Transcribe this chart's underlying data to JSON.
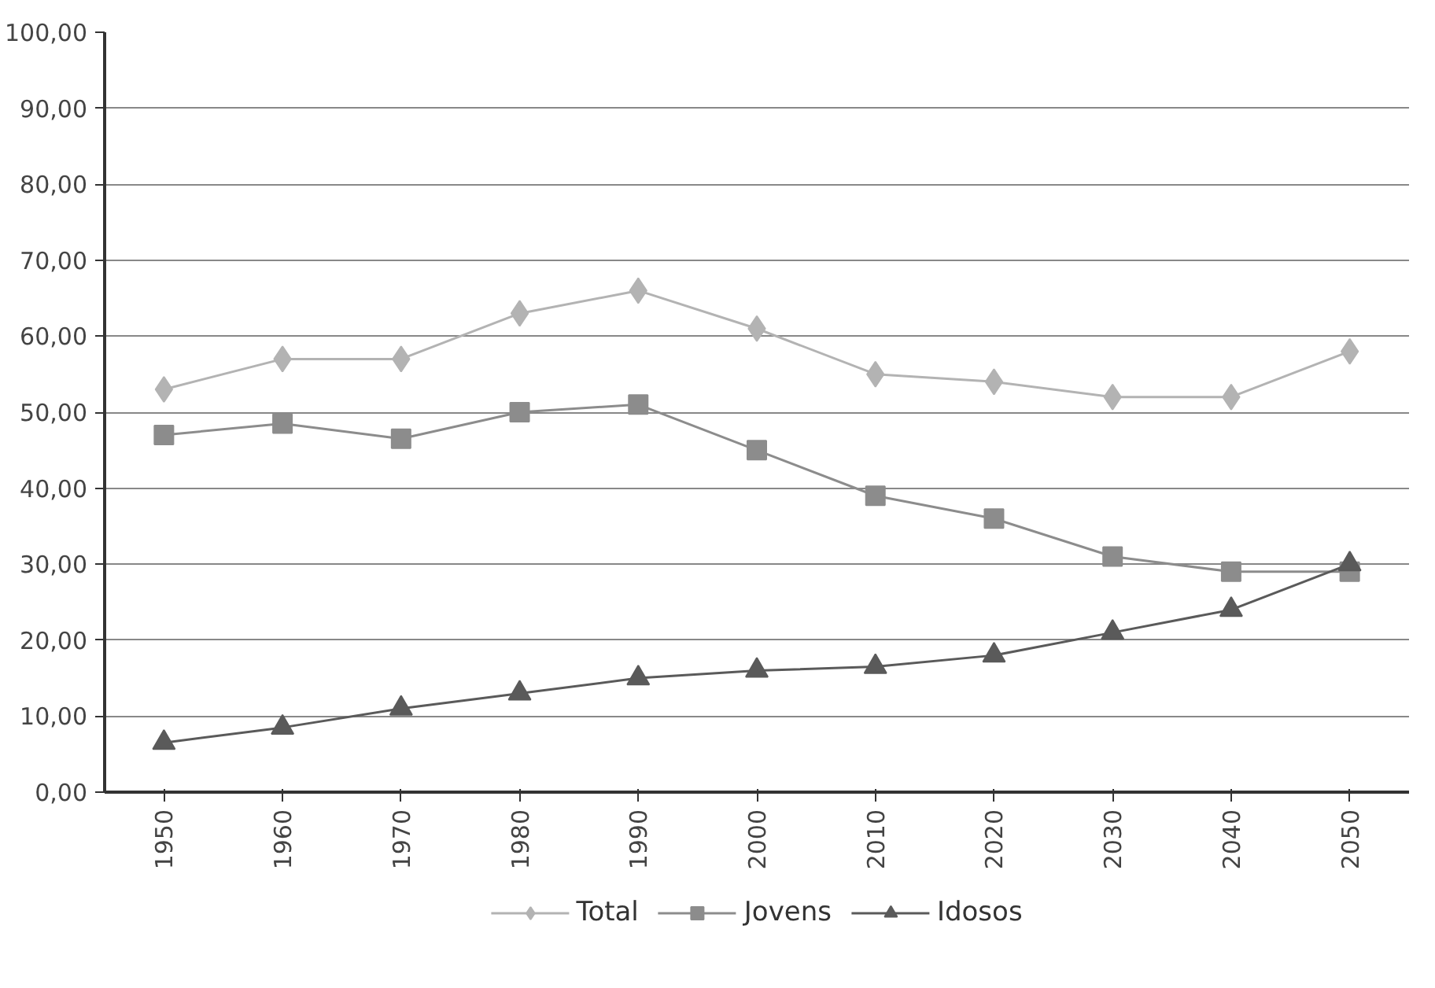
{
  "chart_data": {
    "type": "line",
    "categories": [
      "1950",
      "1960",
      "1970",
      "1980",
      "1990",
      "2000",
      "2010",
      "2020",
      "2030",
      "2040",
      "2050"
    ],
    "series": [
      {
        "name": "Total",
        "color": "#b3b3b3",
        "marker": "diamond",
        "values": [
          53,
          57,
          57,
          63,
          66,
          61,
          55,
          54,
          52,
          52,
          58
        ]
      },
      {
        "name": "Jovens",
        "color": "#8c8c8c",
        "marker": "square",
        "values": [
          47,
          48.5,
          46.5,
          50,
          51,
          45,
          39,
          36,
          31,
          29,
          29
        ]
      },
      {
        "name": "Idosos",
        "color": "#5a5a5a",
        "marker": "triangle",
        "values": [
          6.5,
          8.5,
          11,
          13,
          15,
          16,
          16.5,
          18,
          21,
          24,
          30
        ]
      }
    ],
    "ylim": [
      0,
      100
    ],
    "yticks": [
      {
        "value": 0,
        "label": "0,00"
      },
      {
        "value": 10,
        "label": "10,00"
      },
      {
        "value": 20,
        "label": "20,00"
      },
      {
        "value": 30,
        "label": "30,00"
      },
      {
        "value": 40,
        "label": "40,00"
      },
      {
        "value": 50,
        "label": "50,00"
      },
      {
        "value": 60,
        "label": "60,00"
      },
      {
        "value": 70,
        "label": "70,00"
      },
      {
        "value": 80,
        "label": "80,00"
      },
      {
        "value": 90,
        "label": "90,00"
      },
      {
        "value": 100,
        "label": "100,00"
      }
    ],
    "grid": "y",
    "legend": "bottom",
    "line_style": "solid"
  }
}
